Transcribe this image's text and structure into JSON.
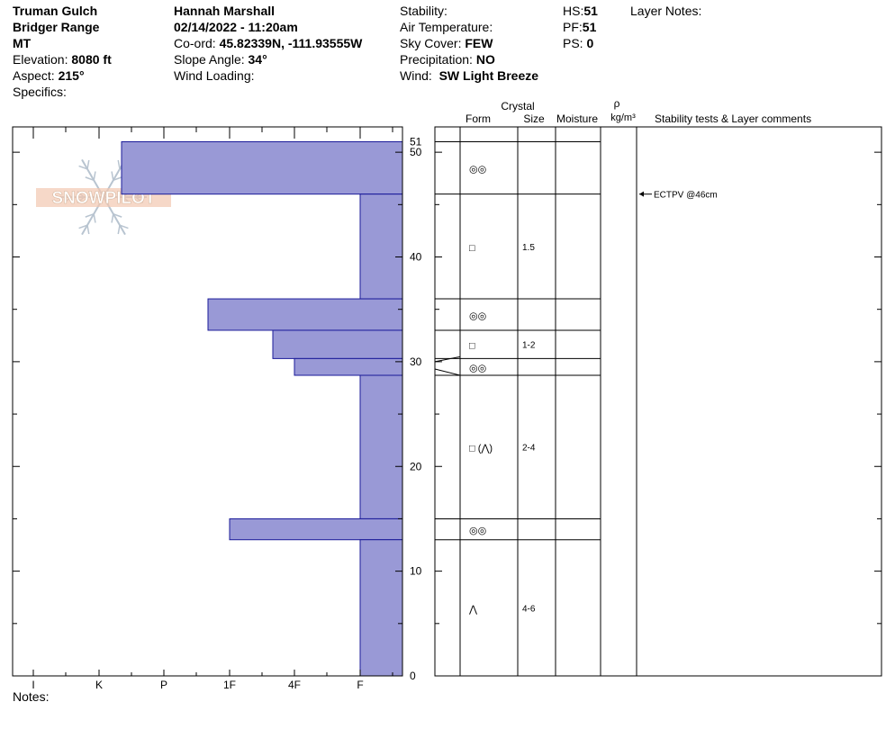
{
  "header": {
    "location": "Truman Gulch",
    "range": "Bridger Range",
    "state": "MT",
    "elevation_label": "Elevation:",
    "elevation_value": "8080 ft",
    "aspect_label": "Aspect:",
    "aspect_value": "215°",
    "specifics_label": "Specifics:",
    "observer": "Hannah Marshall",
    "datetime": "02/14/2022 - 11:20am",
    "coord_label": "Co-ord:",
    "coord_value": "45.82339N, -111.93555W",
    "slope_label": "Slope Angle:",
    "slope_value": "34°",
    "wind_loading_label": "Wind Loading:",
    "stability_label": "Stability:",
    "air_temp_label": "Air Temperature:",
    "sky_label": "Sky Cover:",
    "sky_value": "FEW",
    "precip_label": "Precipitation:",
    "precip_value": "NO",
    "wind_label": "Wind:",
    "wind_value": "SW Light Breeze",
    "hs_label": "HS:",
    "hs_value": "51",
    "pf_label": "PF:",
    "pf_value": "51",
    "ps_label": "PS:",
    "ps_value": "0",
    "layer_notes_label": "Layer Notes:"
  },
  "notes_label": "Notes:",
  "watermark": "SNOWPILOT",
  "colors": {
    "bar_fill": "#9999d6",
    "bar_stroke": "#1a1a99"
  },
  "chart_data": {
    "type": "bar",
    "orientation": "horizontal",
    "xlabel": "",
    "ylabel": "",
    "hardness_categories": [
      "I",
      "K",
      "P",
      "1F",
      "4F",
      "F"
    ],
    "y_ticks": [
      0,
      10,
      20,
      30,
      40,
      50
    ],
    "y_top_label": "51",
    "ylim": [
      0,
      51
    ],
    "layers": [
      {
        "top": 51,
        "bottom": 46,
        "hardness": "K+",
        "form": "◎◎",
        "size": ""
      },
      {
        "top": 46,
        "bottom": 36,
        "hardness": "F",
        "form": "□",
        "size": "1.5"
      },
      {
        "top": 36,
        "bottom": 33,
        "hardness": "1F-",
        "form": "◎◎",
        "size": ""
      },
      {
        "top": 33,
        "bottom": 30.3,
        "hardness": "4F-",
        "form": "□",
        "size": "1-2"
      },
      {
        "top": 30.3,
        "bottom": 28.7,
        "hardness": "4F",
        "form": "◎◎",
        "size": ""
      },
      {
        "top": 28.7,
        "bottom": 15,
        "hardness": "F",
        "form": "□ (⋀)",
        "size": "2-4"
      },
      {
        "top": 15,
        "bottom": 13,
        "hardness": "1F",
        "form": "◎◎",
        "size": ""
      },
      {
        "top": 13,
        "bottom": 0,
        "hardness": "F",
        "form": "⋀",
        "size": "4-6"
      }
    ],
    "table_headers": {
      "crystal": "Crystal",
      "form": "Form",
      "size": "Size",
      "moisture": "Moisture",
      "rho": "ρ",
      "density": "kg/m³",
      "comments": "Stability tests & Layer comments"
    },
    "stability_tests": [
      {
        "depth": 46,
        "label": "ECTPV @46cm"
      }
    ]
  }
}
